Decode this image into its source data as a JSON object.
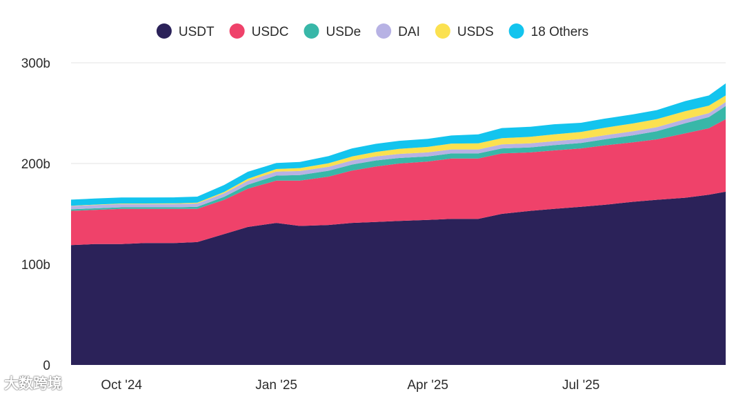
{
  "chart_data": {
    "type": "area",
    "stacked": true,
    "x": [
      "2024-09-01",
      "2024-09-15",
      "2024-10-01",
      "2024-10-15",
      "2024-11-01",
      "2024-11-15",
      "2024-12-01",
      "2024-12-15",
      "2025-01-01",
      "2025-01-15",
      "2025-02-01",
      "2025-02-15",
      "2025-03-01",
      "2025-03-15",
      "2025-04-01",
      "2025-04-15",
      "2025-05-01",
      "2025-05-15",
      "2025-06-01",
      "2025-06-15",
      "2025-07-01",
      "2025-07-15",
      "2025-08-01",
      "2025-08-15",
      "2025-09-01",
      "2025-09-15",
      "2025-09-25"
    ],
    "series": [
      {
        "name": "USDT",
        "color": "#2b2259",
        "values": [
          119,
          120,
          120,
          121,
          121,
          122,
          130,
          137,
          141,
          138,
          139,
          141,
          142,
          143,
          144,
          145,
          145,
          150,
          153,
          155,
          157,
          159,
          162,
          164,
          166,
          169,
          172
        ]
      },
      {
        "name": "USDC",
        "color": "#ef426a",
        "values": [
          34,
          34,
          35,
          34,
          34,
          33,
          34,
          38,
          42,
          45,
          48,
          52,
          55,
          57,
          58,
          60,
          60,
          60,
          58,
          58,
          58,
          59,
          59,
          60,
          64,
          66,
          72
        ]
      },
      {
        "name": "USDe",
        "color": "#38b7a8",
        "values": [
          1.5,
          1.5,
          1.5,
          1.5,
          1.5,
          2,
          3,
          4,
          5,
          5.5,
          5.8,
          6,
          6,
          5.5,
          5,
          5,
          5,
          5,
          5,
          5.2,
          5.4,
          6,
          7,
          8,
          10,
          11,
          13
        ]
      },
      {
        "name": "DAI",
        "color": "#b7b2e4",
        "values": [
          3.3,
          3.3,
          3.3,
          3.3,
          3.3,
          3.3,
          3.5,
          3.8,
          4,
          4,
          4,
          4,
          4,
          4,
          4,
          4,
          4,
          4,
          4,
          4,
          4,
          4,
          4,
          4,
          4,
          4,
          4
        ]
      },
      {
        "name": "USDS",
        "color": "#fbe150",
        "values": [
          0.3,
          0.4,
          0.5,
          0.5,
          0.6,
          0.8,
          1.2,
          2,
          2.5,
          3,
          3.5,
          4,
          4.5,
          5,
          5.5,
          5.8,
          6,
          6.2,
          6.5,
          6.8,
          7,
          7.5,
          7.8,
          8,
          8,
          7.5,
          6.5
        ]
      },
      {
        "name": "18 Others",
        "color": "#13c4ee",
        "values": [
          6,
          6,
          6,
          6,
          6,
          6,
          7,
          7,
          6,
          6,
          7,
          8,
          8,
          8,
          8,
          8,
          9,
          10,
          10,
          10,
          9,
          9,
          9,
          9,
          10,
          10,
          12
        ]
      }
    ],
    "y_ticks": [
      {
        "value": 0,
        "label": "0"
      },
      {
        "value": 100,
        "label": "100b"
      },
      {
        "value": 200,
        "label": "200b"
      },
      {
        "value": 300,
        "label": "300b"
      }
    ],
    "x_ticks": [
      {
        "date": "2024-10-01",
        "label": "Oct '24"
      },
      {
        "date": "2025-01-01",
        "label": "Jan '25"
      },
      {
        "date": "2025-04-01",
        "label": "Apr '25"
      },
      {
        "date": "2025-07-01",
        "label": "Jul '25"
      }
    ],
    "ylim": [
      0,
      300
    ],
    "grid": true,
    "legend_position": "top-center",
    "watermark": "大数跨境"
  }
}
